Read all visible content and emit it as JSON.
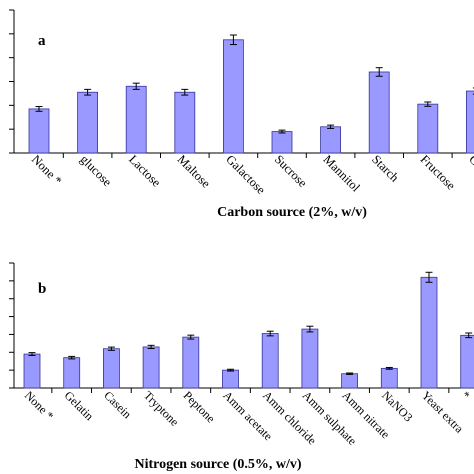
{
  "colors": {
    "bar_fill": "#9999ff",
    "bar_stroke": "#333399",
    "axis": "#000000"
  },
  "chart_data": [
    {
      "type": "bar",
      "panel_label": "a",
      "xlabel": "Carbon source (2%, w/v)",
      "ylabel": "",
      "categories": [
        "None *",
        "glucose",
        "Lactose",
        "Maltose",
        "Galactose",
        "Sucrose",
        "Mannitol",
        "Starch",
        "Fructose",
        "Co"
      ],
      "values": [
        18.5,
        25.5,
        28,
        25.5,
        47.5,
        9,
        11,
        34,
        20.5,
        26
      ],
      "errors": [
        1,
        1.2,
        1.3,
        1.2,
        2,
        0.6,
        0.7,
        1.8,
        0.9,
        1.3
      ],
      "ylim": [
        0,
        60
      ],
      "ytick_count": 7,
      "grid": false,
      "legend": "none"
    },
    {
      "type": "bar",
      "panel_label": "b",
      "xlabel": "Nitrogen source (0.5%, w/v)",
      "ylabel": "",
      "categories": [
        "None *",
        "Gelatin",
        "Casein",
        "Tryptone",
        "Peptone",
        "Amm acetate",
        "Amm chloride",
        "Amm sulphate",
        "Amm nitrate",
        "NaNO3",
        "Yeast extra",
        "*"
      ],
      "values": [
        19,
        17,
        22,
        23,
        28.5,
        10,
        30.5,
        33,
        8,
        11,
        62,
        29.5
      ],
      "errors": [
        0.8,
        0.7,
        0.9,
        0.9,
        1.1,
        0.5,
        1.3,
        1.6,
        0.4,
        0.5,
        2.8,
        1.3
      ],
      "ylim": [
        0,
        70
      ],
      "ytick_count": 8,
      "grid": false,
      "legend": "none"
    }
  ]
}
